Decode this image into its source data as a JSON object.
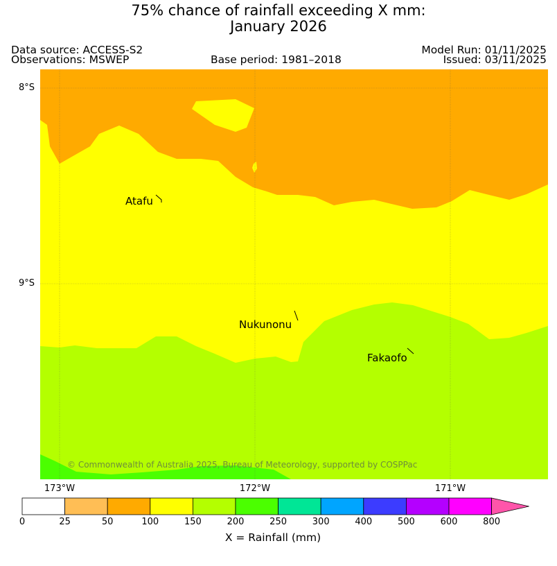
{
  "title_line1": "75% chance of rainfall exceeding X mm:",
  "title_line2": "January 2026",
  "header": {
    "data_source": "Data source: ACCESS-S2",
    "observations": "Observations: MSWEP",
    "base_period": "Base period: 1981–2018",
    "model_run": "Model Run: 01/11/2025",
    "issued": "Issued: 03/11/2025"
  },
  "map": {
    "lat_labels": [
      "8°S",
      "9°S"
    ],
    "lon_labels": [
      "173°W",
      "172°W",
      "171°W"
    ],
    "places": [
      "Atafu",
      "Nukunonu",
      "Fakaofo"
    ],
    "copyright": "© Commonwealth of Australia 2025, Bureau of Meteorology, supported by COSPPac"
  },
  "colorbar": {
    "ticks": [
      "0",
      "25",
      "50",
      "100",
      "150",
      "200",
      "250",
      "300",
      "400",
      "500",
      "600",
      "800"
    ],
    "colors": [
      "#ffffff",
      "#ffbe55",
      "#ffaa00",
      "#ffff00",
      "#b4ff00",
      "#4bff00",
      "#00e696",
      "#00a5ff",
      "#3c3cff",
      "#b400ff",
      "#ff00ff",
      "#ff55aa"
    ],
    "title": "X = Rainfall (mm)"
  }
}
